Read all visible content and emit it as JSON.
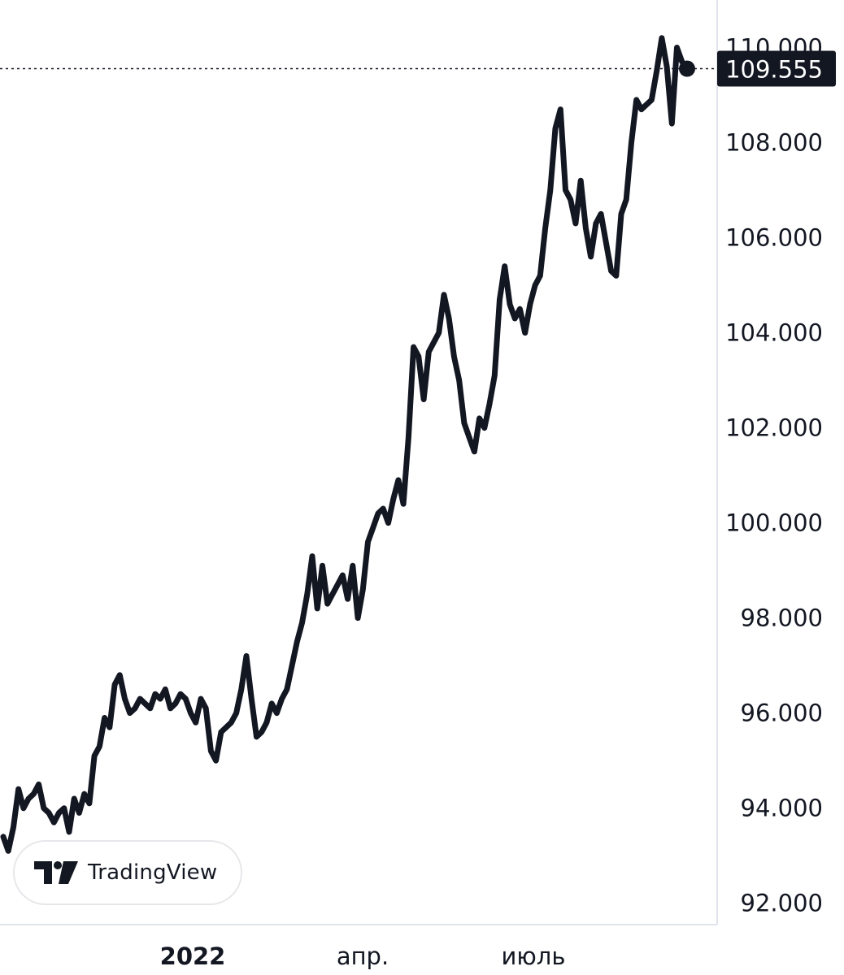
{
  "chart_data": {
    "type": "line",
    "title": "",
    "xlabel": "",
    "ylabel": "",
    "x_ticks": [
      {
        "label": "2022",
        "bold": true
      },
      {
        "label": "апр.",
        "bold": false
      },
      {
        "label": "июль",
        "bold": false
      }
    ],
    "y_ticks": [
      "92.000",
      "94.000",
      "96.000",
      "98.000",
      "100.000",
      "102.000",
      "104.000",
      "106.000",
      "108.000",
      "110.000"
    ],
    "ylim": [
      91.55,
      111.0
    ],
    "last_value": 109.555,
    "last_value_label": "109.555",
    "series": [
      {
        "color": "#131722",
        "values": [
          93.4,
          93.1,
          93.6,
          94.4,
          94.0,
          94.2,
          94.3,
          94.5,
          94.0,
          93.9,
          93.7,
          93.9,
          94.0,
          93.5,
          94.2,
          93.9,
          94.3,
          94.1,
          95.1,
          95.3,
          95.9,
          95.7,
          96.6,
          96.8,
          96.3,
          96.0,
          96.1,
          96.3,
          96.2,
          96.1,
          96.4,
          96.3,
          96.5,
          96.1,
          96.2,
          96.4,
          96.3,
          96.0,
          95.8,
          96.3,
          96.1,
          95.2,
          95.0,
          95.6,
          95.7,
          95.8,
          96.0,
          96.5,
          97.2,
          96.3,
          95.5,
          95.6,
          95.8,
          96.2,
          96.0,
          96.3,
          96.5,
          97.0,
          97.5,
          97.9,
          98.5,
          99.3,
          98.2,
          99.1,
          98.3,
          98.5,
          98.7,
          98.9,
          98.4,
          99.1,
          98.0,
          98.6,
          99.6,
          99.9,
          100.2,
          100.3,
          100.0,
          100.5,
          100.9,
          100.4,
          101.8,
          103.7,
          103.5,
          102.6,
          103.6,
          103.8,
          104.0,
          104.8,
          104.3,
          103.5,
          103.0,
          102.1,
          101.8,
          101.5,
          102.2,
          102.0,
          102.5,
          103.1,
          104.7,
          105.4,
          104.6,
          104.3,
          104.5,
          104.0,
          104.6,
          105.0,
          105.2,
          106.2,
          107.0,
          108.3,
          108.7,
          107.0,
          106.8,
          106.3,
          107.2,
          106.2,
          105.6,
          106.3,
          106.5,
          105.9,
          105.3,
          105.2,
          106.5,
          106.8,
          108.0,
          108.9,
          108.7,
          108.8,
          108.9,
          109.5,
          110.2,
          109.6,
          108.4,
          110.0,
          109.7,
          109.555
        ]
      }
    ]
  },
  "watermark": {
    "text": "TradingView",
    "icon": "tradingview-logo-icon"
  }
}
